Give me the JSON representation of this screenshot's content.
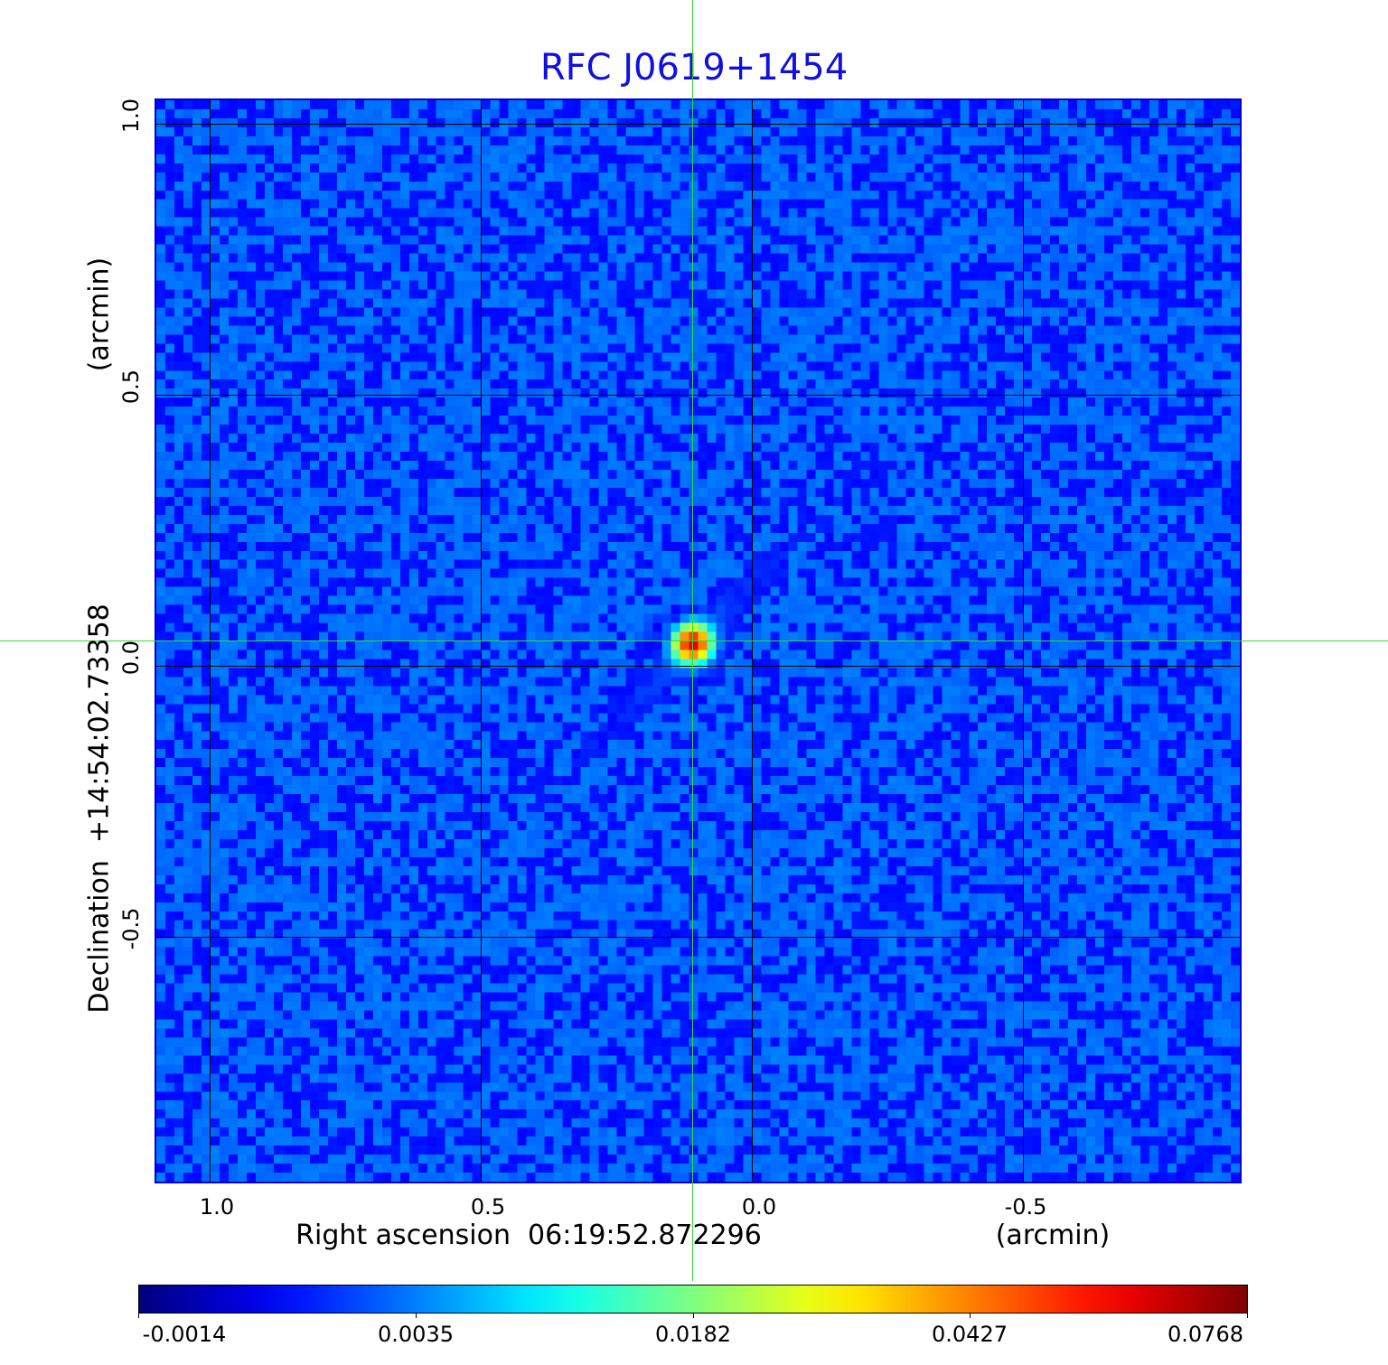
{
  "chart_data": {
    "type": "heatmap",
    "title": "RFC J0619+1454",
    "xlabel": "Right ascension  06:19:52.872296",
    "xunit": "(arcmin)",
    "ylabel": "Declination  +14:54:02.73358",
    "yunit": "(arcmin)",
    "x_ticks": [
      "1.0",
      "0.5",
      "0.0",
      "-0.5"
    ],
    "y_ticks": [
      "1.0",
      "0.5",
      "0.0",
      "-0.5"
    ],
    "xlim": [
      1.1,
      -0.9
    ],
    "ylim": [
      -0.95,
      1.05
    ],
    "grid": true,
    "colormap": "jet",
    "colorbar": {
      "ticks": [
        "-0.0014",
        "0.0035",
        "0.0182",
        "0.0427",
        "0.0768"
      ],
      "range": [
        -0.0014,
        0.0768
      ]
    },
    "peak": {
      "x": 0.11,
      "y": 0.045,
      "value": 0.0768
    },
    "crosshair_color": "#33dd33",
    "title_color": "#1010e0"
  }
}
